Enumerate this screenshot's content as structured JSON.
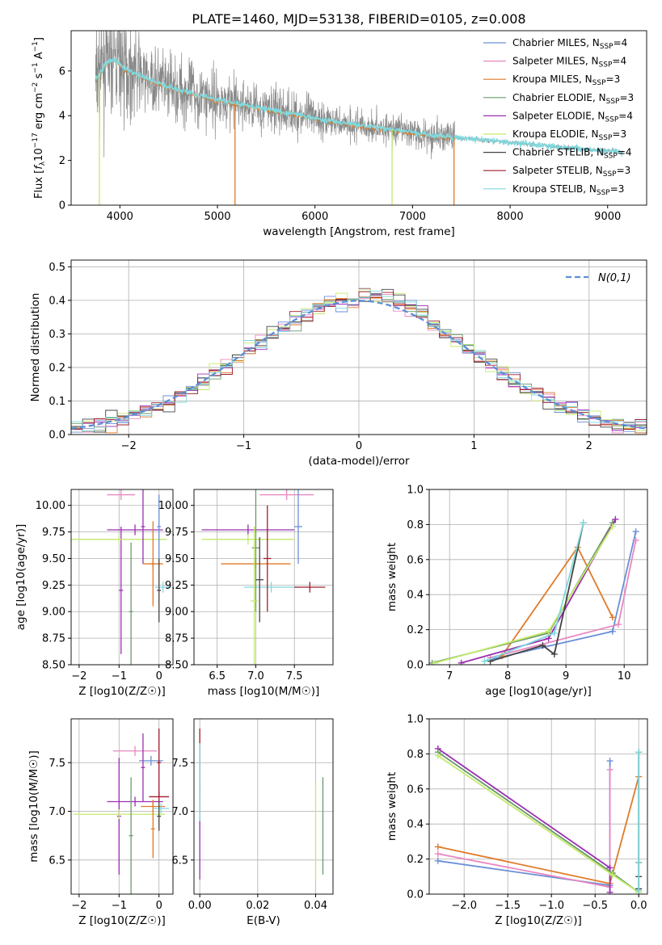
{
  "figure": {
    "title": "PLATE=1460, MJD=53138, FIBERID=0105, z=0.008"
  },
  "legend": [
    {
      "label": "Chabrier MILES, N",
      "sub": "SSP",
      "suffix": "=4",
      "color": "#6a8fd8"
    },
    {
      "label": "Salpeter MILES, N",
      "sub": "SSP",
      "suffix": "=4",
      "color": "#e887c0"
    },
    {
      "label": "Kroupa MILES, N",
      "sub": "SSP",
      "suffix": "=3",
      "color": "#e07a28"
    },
    {
      "label": "Chabrier ELODIE, N",
      "sub": "SSP",
      "suffix": "=3",
      "color": "#6a9a6a"
    },
    {
      "label": "Salpeter ELODIE, N",
      "sub": "SSP",
      "suffix": "=4",
      "color": "#9b2fb2"
    },
    {
      "label": "Kroupa ELODIE, N",
      "sub": "SSP",
      "suffix": "=3",
      "color": "#c3ea6a"
    },
    {
      "label": "Chabrier STELIB, N",
      "sub": "SSP",
      "suffix": "=4",
      "color": "#444444"
    },
    {
      "label": "Salpeter STELIB, N",
      "sub": "SSP",
      "suffix": "=3",
      "color": "#a01c2c"
    },
    {
      "label": "Kroupa STELIB, N",
      "sub": "SSP",
      "suffix": "=3",
      "color": "#7fd8dd"
    }
  ],
  "chart_data": [
    {
      "id": "spectrum",
      "type": "line",
      "xlabel": "wavelength [Angstrom, rest frame]",
      "ylabel": "Flux [f_λ 10^−17 erg cm^−2 s^−1 A^−1]",
      "xlim": [
        3500,
        9400
      ],
      "ylim": [
        0,
        7.8
      ],
      "xticks": [
        4000,
        5000,
        6000,
        7000,
        8000,
        9000
      ],
      "yticks": [
        0,
        2,
        4,
        6
      ],
      "grid": false,
      "legend_position": "top-right",
      "observed_color": "#888888",
      "model_color": "#7fd8dd",
      "model_anchor_x": [
        3750,
        3850,
        3950,
        4050,
        4150,
        4300,
        4500,
        4750,
        5000,
        5250,
        5500,
        5750,
        6000,
        6250,
        6500,
        6750,
        7000,
        7250,
        7500,
        7750,
        8000,
        8250,
        8500,
        8750,
        9000,
        9150
      ],
      "model_anchor_y": [
        5.6,
        6.3,
        6.5,
        6.1,
        5.9,
        5.6,
        5.3,
        5.0,
        4.7,
        4.5,
        4.3,
        4.1,
        3.9,
        3.7,
        3.55,
        3.4,
        3.25,
        3.1,
        3.0,
        2.9,
        2.8,
        2.7,
        2.6,
        2.5,
        2.45,
        2.4
      ]
    },
    {
      "id": "residual-histogram",
      "type": "line",
      "xlabel": "(data-model)/error",
      "ylabel": "Normed distribution",
      "xlim": [
        -2.5,
        2.5
      ],
      "ylim": [
        0,
        0.52
      ],
      "xticks": [
        -2,
        -1,
        0,
        1,
        2
      ],
      "yticks": [
        0.0,
        0.1,
        0.2,
        0.3,
        0.4,
        0.5
      ],
      "grid": true,
      "legend": "N(0,1)",
      "legend_position": "top-right",
      "reference_color": "#5b8fd6",
      "bin_width": 0.1
    },
    {
      "id": "age-vs-Z",
      "type": "scatter",
      "xlabel": "Z [log10(Z/Z☉)]",
      "ylabel": "age  [log10(age/yr)]",
      "xlim": [
        -2.2,
        0.35
      ],
      "ylim": [
        8.5,
        10.15
      ],
      "xticks": [
        -2,
        -1,
        0
      ],
      "yticks": [
        8.5,
        8.75,
        9.0,
        9.25,
        9.5,
        9.75,
        10.0
      ],
      "grid": true,
      "series": [
        {
          "color": "#e887c0",
          "x": -0.95,
          "y": 10.1,
          "xerr": 0.35,
          "yerr": 0.05
        },
        {
          "color": "#9b2fb2",
          "x": -0.95,
          "y": 9.2,
          "xerr": 0.05,
          "yerr": 0.6
        },
        {
          "color": "#9b2fb2",
          "x": -0.6,
          "y": 9.77,
          "xerr": 0.7,
          "yerr": 0.05
        },
        {
          "color": "#c3ea6a",
          "x": -1.0,
          "y": 9.68,
          "xerr": 1.2,
          "yerr": 0.05
        },
        {
          "color": "#6a9a6a",
          "x": -0.7,
          "y": 9.0,
          "xerr": 0.05,
          "yerr": 0.65
        },
        {
          "color": "#9b2fb2",
          "x": -0.4,
          "y": 9.8,
          "xerr": 0.05,
          "yerr": 0.35
        },
        {
          "color": "#e07a28",
          "x": -0.15,
          "y": 9.45,
          "xerr": 0.25,
          "yerr": 0.05
        },
        {
          "color": "#e07a28",
          "x": -0.15,
          "y": 9.45,
          "xerr": 0.05,
          "yerr": 0.4
        },
        {
          "color": "#7fd8dd",
          "x": 0.1,
          "y": 9.23,
          "xerr": 0.2,
          "yerr": 0.05
        },
        {
          "color": "#444444",
          "x": 0.0,
          "y": 9.2,
          "xerr": 0.05,
          "yerr": 0.3
        },
        {
          "color": "#6a8fd8",
          "x": 0.0,
          "y": 9.8,
          "xerr": 0.05,
          "yerr": 0.3
        }
      ]
    },
    {
      "id": "age-vs-mass",
      "type": "scatter",
      "xlabel": "mass [log10(M/M☉)]",
      "ylabel": "",
      "xlim": [
        6.2,
        8.0
      ],
      "ylim": [
        8.5,
        10.15
      ],
      "xticks": [
        6.5,
        7.0,
        7.5
      ],
      "yticks": [
        8.5,
        8.75,
        9.0,
        9.25,
        9.5,
        9.75,
        10.0
      ],
      "grid": true,
      "series": [
        {
          "color": "#e887c0",
          "x": 7.4,
          "y": 10.1,
          "xerr": 0.35,
          "yerr": 0.05
        },
        {
          "color": "#9b2fb2",
          "x": 6.9,
          "y": 9.77,
          "xerr": 0.6,
          "yerr": 0.05
        },
        {
          "color": "#c3ea6a",
          "x": 6.9,
          "y": 9.68,
          "xerr": 0.6,
          "yerr": 0.05
        },
        {
          "color": "#e07a28",
          "x": 7.0,
          "y": 9.45,
          "xerr": 0.45,
          "yerr": 0.05
        },
        {
          "color": "#7fd8dd",
          "x": 7.2,
          "y": 9.23,
          "xerr": 0.35,
          "yerr": 0.05
        },
        {
          "color": "#a01c2c",
          "x": 7.7,
          "y": 9.23,
          "xerr": 0.2,
          "yerr": 0.05
        },
        {
          "color": "#6a9a6a",
          "x": 7.0,
          "y": 9.6,
          "xerr": 0.05,
          "yerr": 0.6
        },
        {
          "color": "#c3ea6a",
          "x": 6.98,
          "y": 9.1,
          "xerr": 0.05,
          "yerr": 0.7
        },
        {
          "color": "#a01c2c",
          "x": 7.15,
          "y": 9.5,
          "xerr": 0.05,
          "yerr": 0.5
        },
        {
          "color": "#6a8fd8",
          "x": 7.55,
          "y": 9.8,
          "xerr": 0.05,
          "yerr": 0.35
        },
        {
          "color": "#444444",
          "x": 7.05,
          "y": 9.3,
          "xerr": 0.05,
          "yerr": 0.4
        }
      ]
    },
    {
      "id": "mass-weight-vs-age",
      "type": "line",
      "xlabel": "age  [log10(age/yr)]",
      "ylabel": "mass weight",
      "xlim": [
        6.65,
        10.4
      ],
      "ylim": [
        0,
        1.0
      ],
      "xticks": [
        7,
        8,
        9,
        10
      ],
      "yticks": [
        0.0,
        0.2,
        0.4,
        0.6,
        0.8,
        1.0
      ],
      "grid": true,
      "series": [
        {
          "color": "#6a8fd8",
          "x": [
            7.7,
            9.8,
            10.2
          ],
          "y": [
            0.03,
            0.19,
            0.76
          ]
        },
        {
          "color": "#e887c0",
          "x": [
            7.7,
            9.9,
            10.2
          ],
          "y": [
            0.04,
            0.23,
            0.71
          ]
        },
        {
          "color": "#e07a28",
          "x": [
            7.9,
            9.2,
            9.8
          ],
          "y": [
            0.05,
            0.67,
            0.27
          ]
        },
        {
          "color": "#6a9a6a",
          "x": [
            6.7,
            8.7,
            9.8
          ],
          "y": [
            0.01,
            0.18,
            0.81
          ]
        },
        {
          "color": "#9b2fb2",
          "x": [
            7.2,
            8.7,
            9.85
          ],
          "y": [
            0.01,
            0.15,
            0.83
          ]
        },
        {
          "color": "#c3ea6a",
          "x": [
            6.75,
            8.7,
            9.8
          ],
          "y": [
            0.01,
            0.19,
            0.79
          ]
        },
        {
          "color": "#444444",
          "x": [
            7.7,
            8.6,
            8.8,
            9.3
          ],
          "y": [
            0.02,
            0.11,
            0.06,
            0.81
          ]
        },
        {
          "color": "#7fd8dd",
          "x": [
            7.6,
            8.8,
            9.3
          ],
          "y": [
            0.02,
            0.18,
            0.81
          ]
        }
      ]
    },
    {
      "id": "mass-vs-Z",
      "type": "scatter",
      "xlabel": "Z [log10(Z/Z☉)]",
      "ylabel": "mass [log10(M/M☉)]",
      "xlim": [
        -2.2,
        0.35
      ],
      "ylim": [
        6.15,
        7.95
      ],
      "xticks": [
        -2,
        -1,
        0
      ],
      "yticks": [
        6.5,
        7.0,
        7.5
      ],
      "grid": true,
      "series": [
        {
          "color": "#e887c0",
          "x": -0.6,
          "y": 7.62,
          "xerr": 0.55,
          "yerr": 0.05
        },
        {
          "color": "#6a8fd8",
          "x": -0.2,
          "y": 7.52,
          "xerr": 0.3,
          "yerr": 0.05
        },
        {
          "color": "#9b2fb2",
          "x": -1.0,
          "y": 6.95,
          "xerr": 0.05,
          "yerr": 0.6
        },
        {
          "color": "#9b2fb2",
          "x": -0.6,
          "y": 7.1,
          "xerr": 0.7,
          "yerr": 0.05
        },
        {
          "color": "#c3ea6a",
          "x": -1.0,
          "y": 6.97,
          "xerr": 1.15,
          "yerr": 0.05
        },
        {
          "color": "#6a9a6a",
          "x": -0.7,
          "y": 6.75,
          "xerr": 0.05,
          "yerr": 0.6
        },
        {
          "color": "#9b2fb2",
          "x": -0.4,
          "y": 7.45,
          "xerr": 0.05,
          "yerr": 0.35
        },
        {
          "color": "#e07a28",
          "x": -0.15,
          "y": 7.05,
          "xerr": 0.3,
          "yerr": 0.05
        },
        {
          "color": "#e07a28",
          "x": -0.15,
          "y": 6.82,
          "xerr": 0.05,
          "yerr": 0.3
        },
        {
          "color": "#a01c2c",
          "x": 0.0,
          "y": 7.5,
          "xerr": 0.05,
          "yerr": 0.35
        },
        {
          "color": "#a01c2c",
          "x": 0.0,
          "y": 7.15,
          "xerr": 0.25,
          "yerr": 0.05
        },
        {
          "color": "#7fd8dd",
          "x": 0.05,
          "y": 7.03,
          "xerr": 0.2,
          "yerr": 0.05
        },
        {
          "color": "#444444",
          "x": 0.0,
          "y": 6.95,
          "xerr": 0.05,
          "yerr": 0.15
        }
      ]
    },
    {
      "id": "mass-vs-EBV",
      "type": "scatter",
      "xlabel": "E(B-V)",
      "ylabel": "",
      "xlim": [
        -0.002,
        0.046
      ],
      "ylim": [
        6.15,
        7.95
      ],
      "xticks": [
        0.0,
        0.02,
        0.04
      ],
      "yticks": [
        6.5,
        7.0,
        7.5
      ],
      "grid": true,
      "series": [
        {
          "color": "#a01c2c",
          "x": 0.0,
          "y": 7.5,
          "xerr": 0.0,
          "yerr": 0.35
        },
        {
          "color": "#9b2fb2",
          "x": 0.0,
          "y": 6.8,
          "xerr": 0.0,
          "yerr": 0.5
        },
        {
          "color": "#7fd8dd",
          "x": 0.0,
          "y": 7.3,
          "xerr": 0.0,
          "yerr": 0.4
        },
        {
          "color": "#c3ea6a",
          "x": 0.04,
          "y": 6.8,
          "xerr": 0.0,
          "yerr": 0.5
        },
        {
          "color": "#6a9a6a",
          "x": 0.0425,
          "y": 6.85,
          "xerr": 0.0,
          "yerr": 0.5
        }
      ]
    },
    {
      "id": "mass-weight-vs-Z",
      "type": "line",
      "xlabel": "Z [log10(Z/Z☉)]",
      "ylabel": "mass weight",
      "xlim": [
        -2.4,
        0.1
      ],
      "ylim": [
        0,
        1.0
      ],
      "xticks": [
        -2.0,
        -1.5,
        -1.0,
        -0.5,
        0.0
      ],
      "yticks": [
        0.0,
        0.2,
        0.4,
        0.6,
        0.8,
        1.0
      ],
      "grid": true,
      "series": [
        {
          "color": "#6a8fd8",
          "x": [
            -2.3,
            -0.33,
            -0.33
          ],
          "y": [
            0.19,
            0.05,
            0.76
          ]
        },
        {
          "color": "#e887c0",
          "x": [
            -2.3,
            -0.33,
            -0.33
          ],
          "y": [
            0.23,
            0.04,
            0.71
          ]
        },
        {
          "color": "#e07a28",
          "x": [
            -2.3,
            -0.33,
            0.0
          ],
          "y": [
            0.27,
            0.06,
            0.67
          ]
        },
        {
          "color": "#9b2fb2",
          "x": [
            -2.3,
            -0.33,
            -0.33
          ],
          "y": [
            0.83,
            0.15,
            0.01
          ]
        },
        {
          "color": "#6a9a6a",
          "x": [
            -2.3,
            -0.3,
            0.0
          ],
          "y": [
            0.81,
            0.12,
            0.01
          ]
        },
        {
          "color": "#c3ea6a",
          "x": [
            -2.3,
            -0.3,
            0.0
          ],
          "y": [
            0.79,
            0.11,
            0.01
          ]
        },
        {
          "color": "#444444",
          "x": [
            0.0,
            0.0,
            0.0,
            0.0
          ],
          "y": [
            0.81,
            0.18,
            0.1,
            0.03
          ]
        },
        {
          "color": "#7fd8dd",
          "x": [
            0.0,
            0.0,
            0.0
          ],
          "y": [
            0.81,
            0.18,
            0.02
          ]
        }
      ]
    }
  ]
}
